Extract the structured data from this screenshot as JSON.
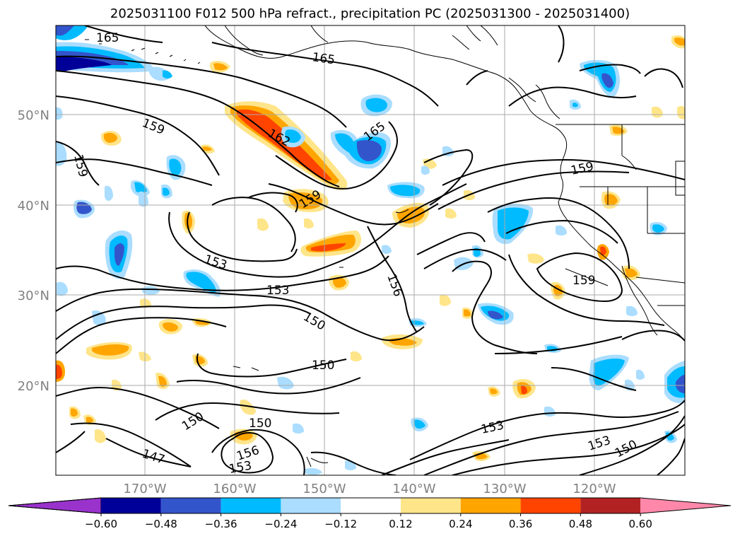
{
  "title": "2025031100 F012 500 hPa refract., precipitation PC (2025031300 - 2025031400)",
  "lat_labels": [
    "50°N",
    "40°N",
    "30°N",
    "20°N"
  ],
  "lon_labels": [
    "170°W",
    "160°W",
    "150°W",
    "140°W",
    "130°W",
    "120°W"
  ],
  "contour_labels": [
    "165",
    "165",
    "165",
    "162",
    "159",
    "159",
    "159",
    "159",
    "159",
    "156",
    "156",
    "153",
    "153",
    "153",
    "153",
    "153",
    "150",
    "150",
    "150",
    "150",
    "150",
    "147"
  ],
  "colorbar": {
    "ticks": [
      "−0.60",
      "−0.48",
      "−0.36",
      "−0.24",
      "−0.12",
      "0.12",
      "0.24",
      "0.36",
      "0.48",
      "0.60"
    ],
    "colors": [
      "#9933cc",
      "#000099",
      "#3355cc",
      "#00bbff",
      "#aaddff",
      "#ffffff",
      "#ffe58a",
      "#ffa500",
      "#ff4400",
      "#b22222",
      "#ff88aa",
      "#ff99bb"
    ]
  },
  "colors": {
    "neg1": "#aaddff",
    "neg2": "#00bbff",
    "neg3": "#3355cc",
    "neg4": "#000099",
    "pos1": "#ffe58a",
    "pos2": "#ffa500",
    "pos3": "#ff4400",
    "pos4": "#b22222",
    "grid": "#aaaaaa",
    "tick_text": "#808080"
  }
}
